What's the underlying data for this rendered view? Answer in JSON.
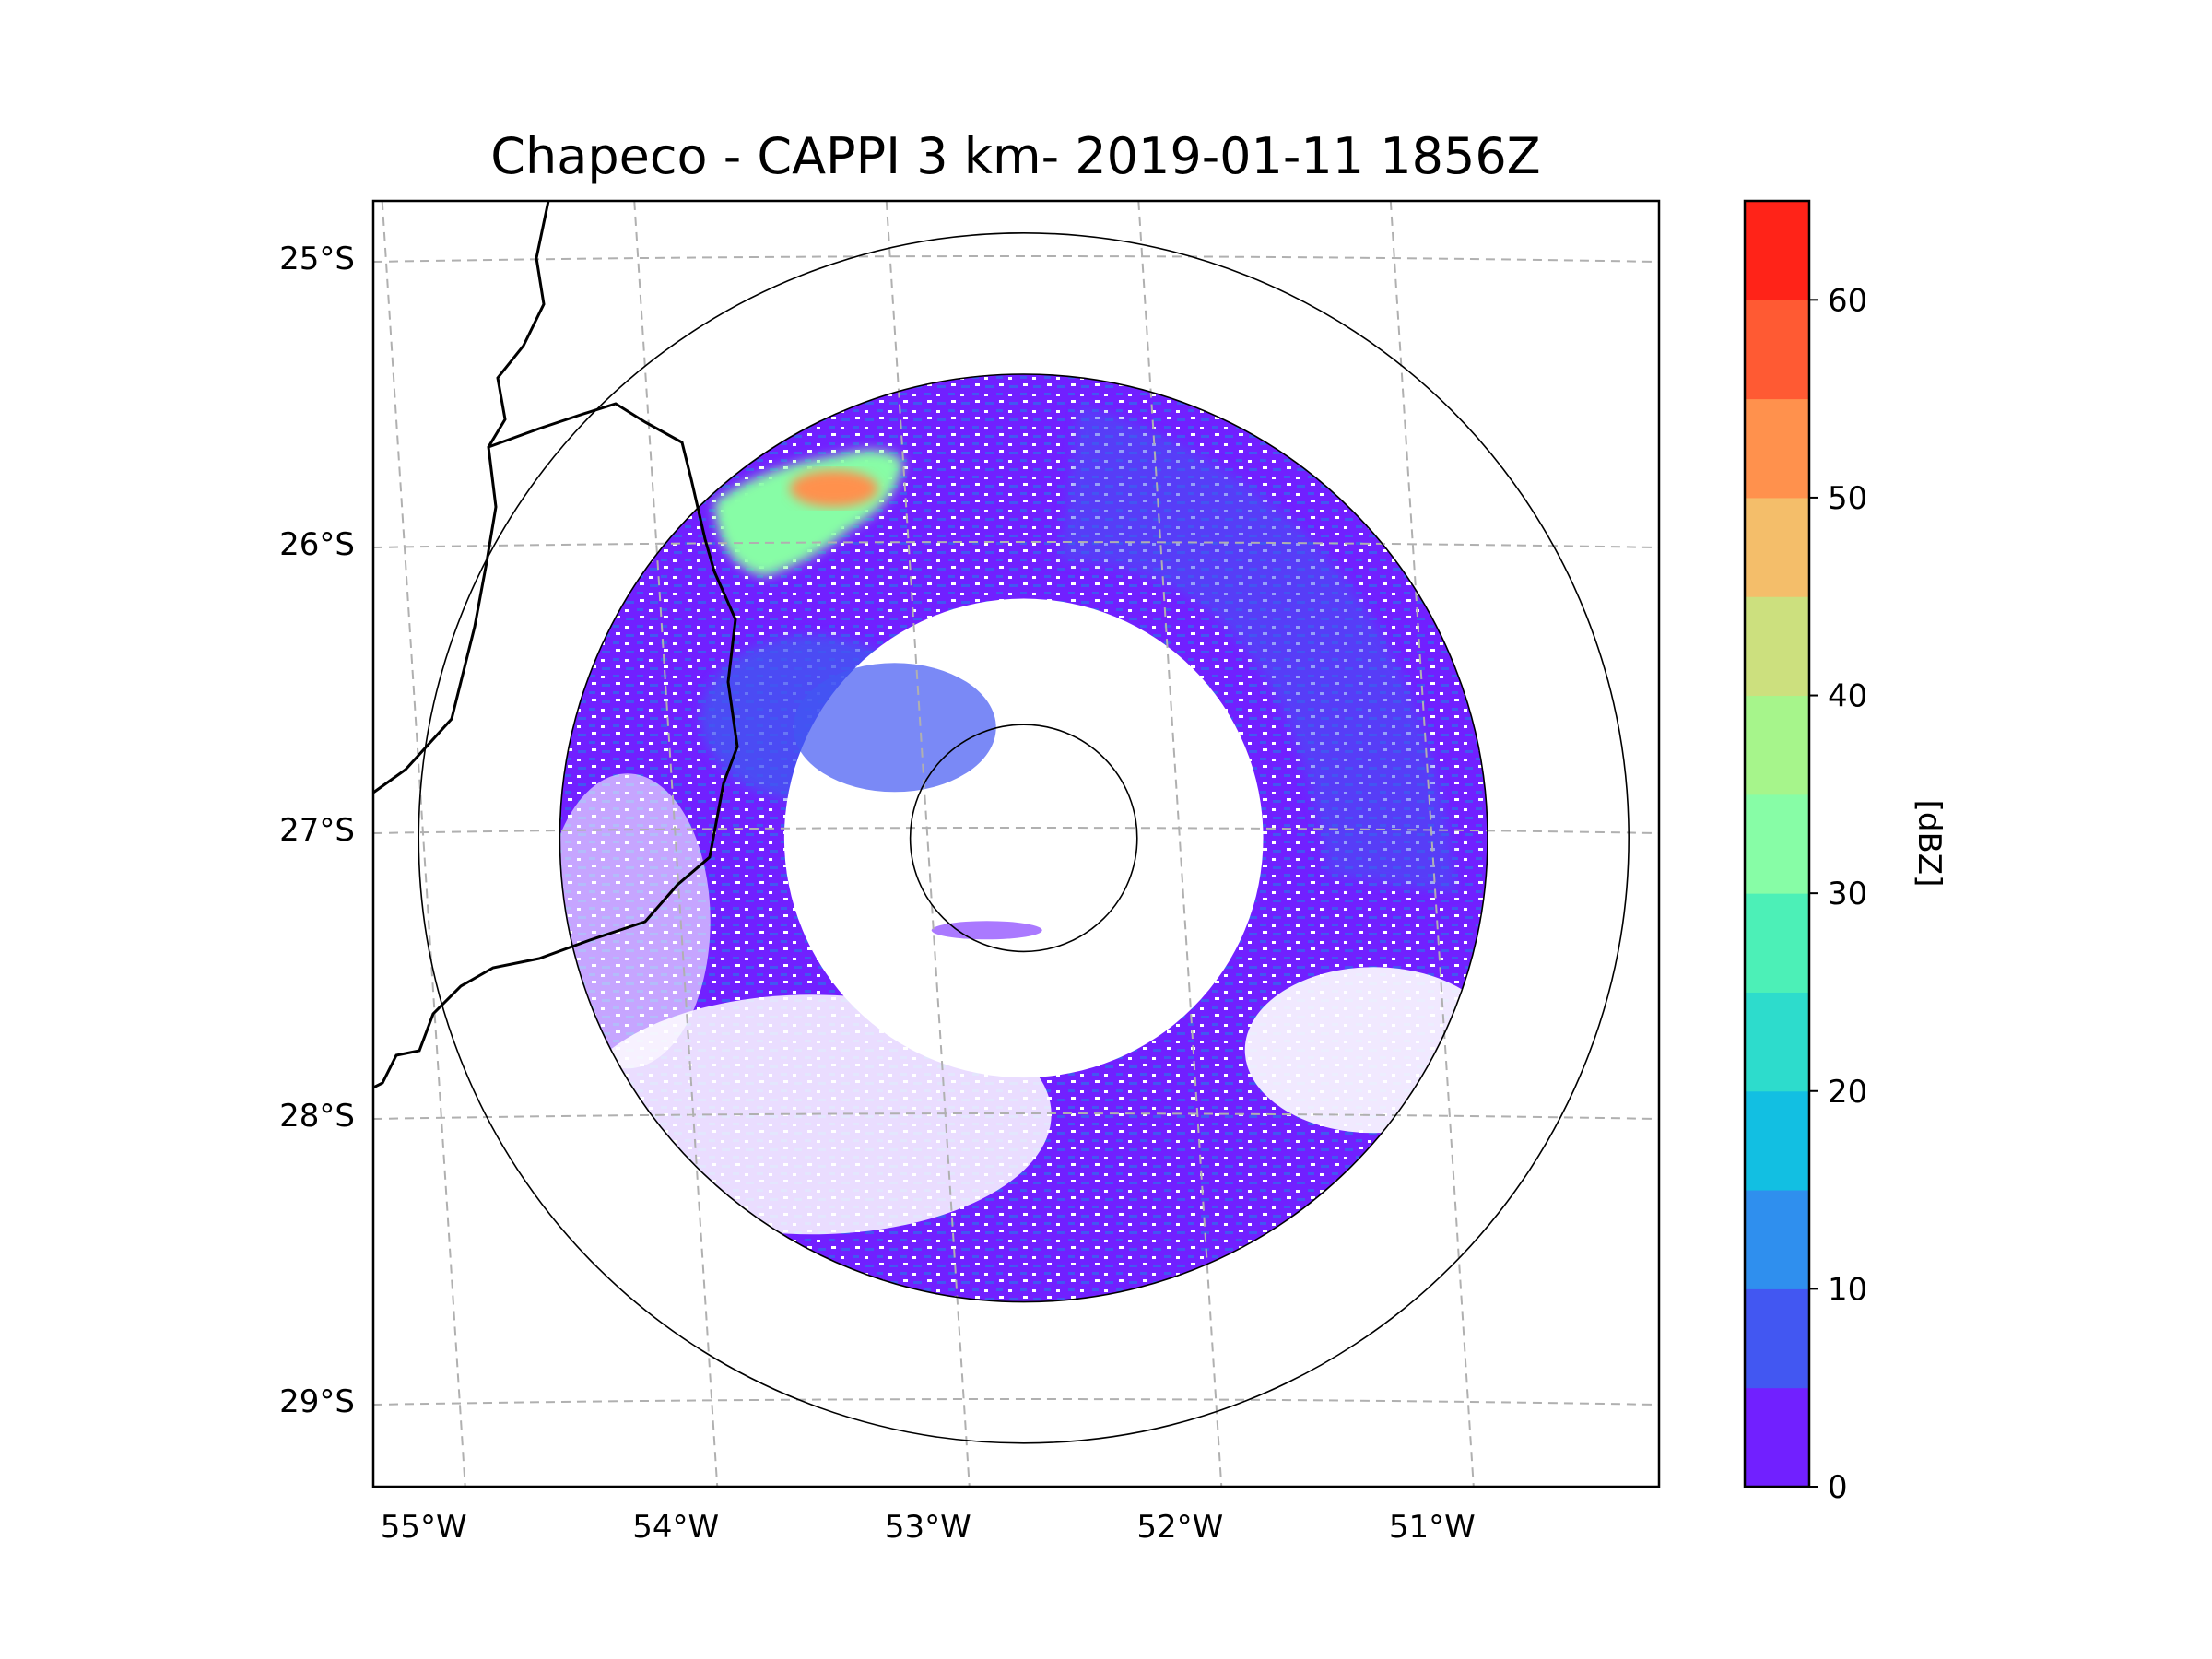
{
  "chart_data": {
    "type": "heatmap",
    "title": "Chapeco - CAPPI 3 km- 2019-01-11 1856Z",
    "projection": "polar radar map",
    "lon_ticks": [
      -55,
      -54,
      -53,
      -52,
      -51
    ],
    "lon_tick_labels": [
      "55°W",
      "54°W",
      "53°W",
      "52°W",
      "51°W"
    ],
    "lat_ticks": [
      -25,
      -26,
      -27,
      -28,
      -29
    ],
    "lat_tick_labels": [
      "25°S",
      "26°S",
      "27°S",
      "28°S",
      "29°S"
    ],
    "lon_range": [
      -55.2,
      -50.1
    ],
    "lat_range": [
      -29.3,
      -24.8
    ],
    "radar_center": {
      "lon": -52.62,
      "lat": -27.03
    },
    "range_rings_deg": [
      0.45,
      1.84,
      2.4
    ],
    "data_annulus_deg": [
      0.95,
      1.84
    ],
    "gridlines": true,
    "colorbar": {
      "label": "[dBZ]",
      "ticks": [
        0,
        10,
        20,
        30,
        40,
        50,
        60
      ],
      "tick_labels": [
        "0",
        "10",
        "20",
        "30",
        "40",
        "50",
        "60"
      ],
      "bounds": [
        0,
        65
      ],
      "levels": [
        {
          "from": 0,
          "to": 5,
          "color": "#7120ff"
        },
        {
          "from": 5,
          "to": 10,
          "color": "#4257f2"
        },
        {
          "from": 10,
          "to": 15,
          "color": "#2f8fee"
        },
        {
          "from": 15,
          "to": 20,
          "color": "#12bfe2"
        },
        {
          "from": 20,
          "to": 25,
          "color": "#2ddccc"
        },
        {
          "from": 25,
          "to": 30,
          "color": "#4cf0b7"
        },
        {
          "from": 30,
          "to": 35,
          "color": "#87fda6"
        },
        {
          "from": 35,
          "to": 40,
          "color": "#a6f58b"
        },
        {
          "from": 40,
          "to": 45,
          "color": "#cce07e"
        },
        {
          "from": 45,
          "to": 50,
          "color": "#f4be6a"
        },
        {
          "from": 50,
          "to": 55,
          "color": "#ff914d"
        },
        {
          "from": 55,
          "to": 60,
          "color": "#ff5a33"
        },
        {
          "from": 60,
          "to": 65,
          "color": "#ff2318"
        }
      ]
    },
    "echo_regions": [
      {
        "name": "main-echo-ring",
        "dbz": 3
      },
      {
        "name": "northeast-moderate-band",
        "dbz": 8
      },
      {
        "name": "northwest-strong-cell",
        "dbz": 35
      },
      {
        "name": "northwest-core",
        "dbz": 52
      }
    ]
  }
}
